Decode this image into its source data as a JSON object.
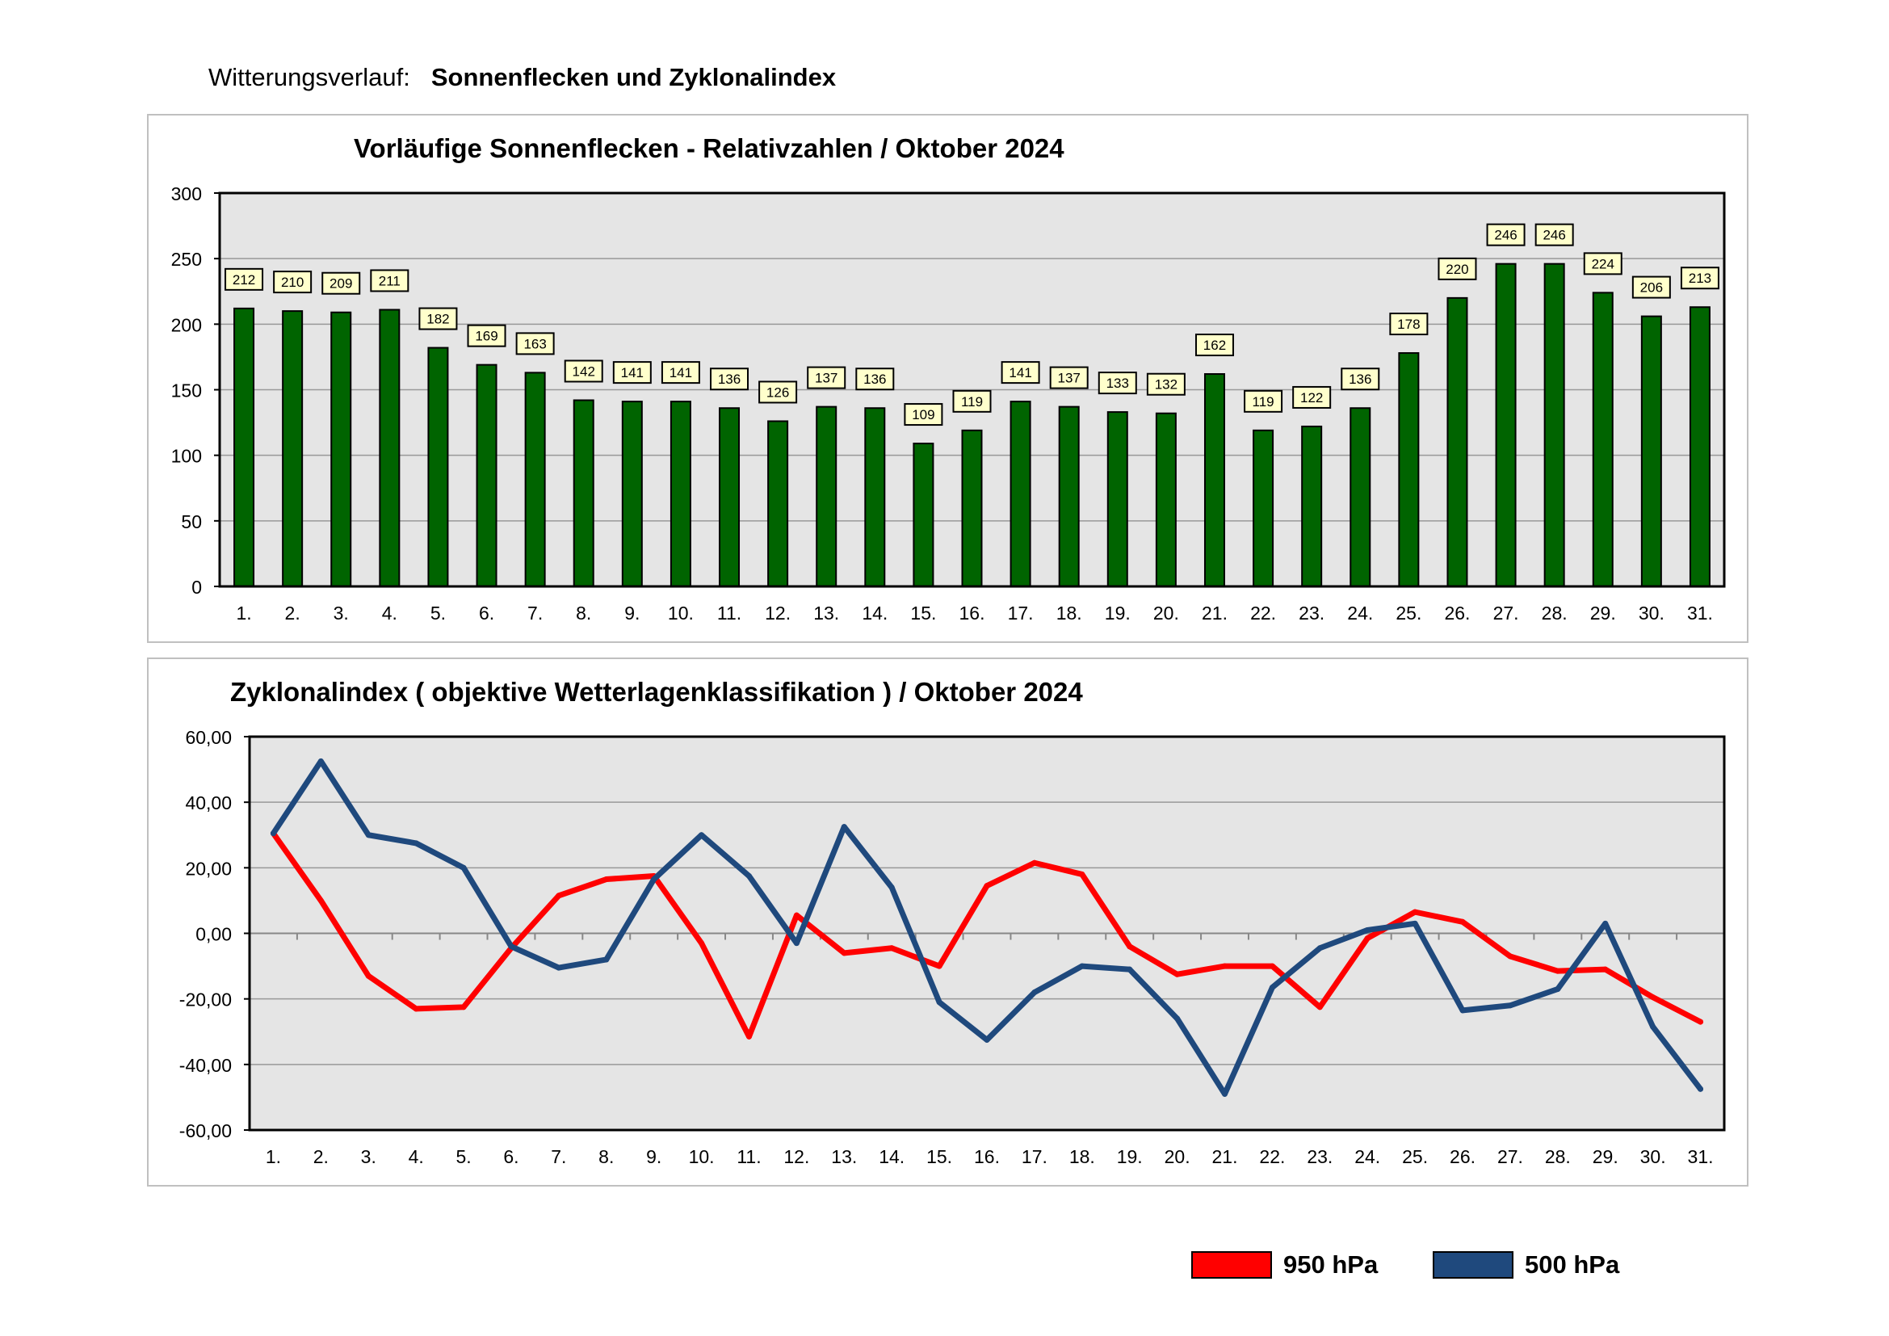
{
  "page": {
    "title_prefix": "Witterungsverlauf:",
    "title_main": "Sonnenflecken und Zyklonalindex"
  },
  "chart_data": [
    {
      "type": "bar",
      "title": "Vorläufige Sonnenflecken - Relativzahlen  /   Oktober 2024",
      "categories": [
        "1.",
        "2.",
        "3.",
        "4.",
        "5.",
        "6.",
        "7.",
        "8.",
        "9.",
        "10.",
        "11.",
        "12.",
        "13.",
        "14.",
        "15.",
        "16.",
        "17.",
        "18.",
        "19.",
        "20.",
        "21.",
        "22.",
        "23.",
        "24.",
        "25.",
        "26.",
        "27.",
        "28.",
        "29.",
        "30.",
        "31."
      ],
      "values": [
        212,
        210,
        209,
        211,
        182,
        169,
        163,
        142,
        141,
        141,
        136,
        126,
        137,
        136,
        109,
        119,
        141,
        137,
        133,
        132,
        162,
        119,
        122,
        136,
        178,
        220,
        246,
        246,
        224,
        206,
        213
      ],
      "ylim": [
        0,
        300
      ],
      "yticks": [
        0,
        50,
        100,
        150,
        200,
        250,
        300
      ],
      "xlabel": "",
      "ylabel": "",
      "grid": true,
      "bar_color": "#006400",
      "label_bg": "#ffffcc",
      "plot_bg": "#e5e5e5"
    },
    {
      "type": "line",
      "title": "Zyklonalindex  ( objektive Wetterlagenklassifikation )  /  Oktober 2024",
      "categories": [
        "1.",
        "2.",
        "3.",
        "4.",
        "5.",
        "6.",
        "7.",
        "8.",
        "9.",
        "10.",
        "11.",
        "12.",
        "13.",
        "14.",
        "15.",
        "16.",
        "17.",
        "18.",
        "19.",
        "20.",
        "21.",
        "22.",
        "23.",
        "24.",
        "25.",
        "26.",
        "27.",
        "28.",
        "29.",
        "30.",
        "31."
      ],
      "series": [
        {
          "name": "950 hPa",
          "color": "#ff0000",
          "values": [
            30.5,
            10,
            -13,
            -23,
            -22.5,
            -4.5,
            11.5,
            16.5,
            17.5,
            -3,
            -31.5,
            5.5,
            -6,
            -4.5,
            -10,
            14.5,
            21.5,
            18,
            -4,
            -12.5,
            -10,
            -10,
            -22.5,
            -1.5,
            6.5,
            3.5,
            -7,
            -11.5,
            -11,
            -19.5,
            -27
          ]
        },
        {
          "name": "500 hPa",
          "color": "#1f497d",
          "values": [
            30.5,
            52.5,
            30,
            27.5,
            20,
            -4,
            -10.5,
            -8,
            16.5,
            30,
            17.5,
            -3,
            32.5,
            14,
            -21,
            -32.5,
            -18,
            -10,
            -11,
            -26,
            -49,
            -16.5,
            -4.5,
            1,
            3,
            -23.5,
            -22,
            -17,
            3,
            -28.5,
            -47.5
          ]
        }
      ],
      "ylim": [
        -60,
        60
      ],
      "yticks": [
        "-60,00",
        "-40,00",
        "-20,00",
        "0,00",
        "20,00",
        "40,00",
        "60,00"
      ],
      "ytick_values": [
        -60,
        -40,
        -20,
        0,
        20,
        40,
        60
      ],
      "grid": true,
      "plot_bg": "#e5e5e5",
      "legend_position": "bottom-right"
    }
  ]
}
